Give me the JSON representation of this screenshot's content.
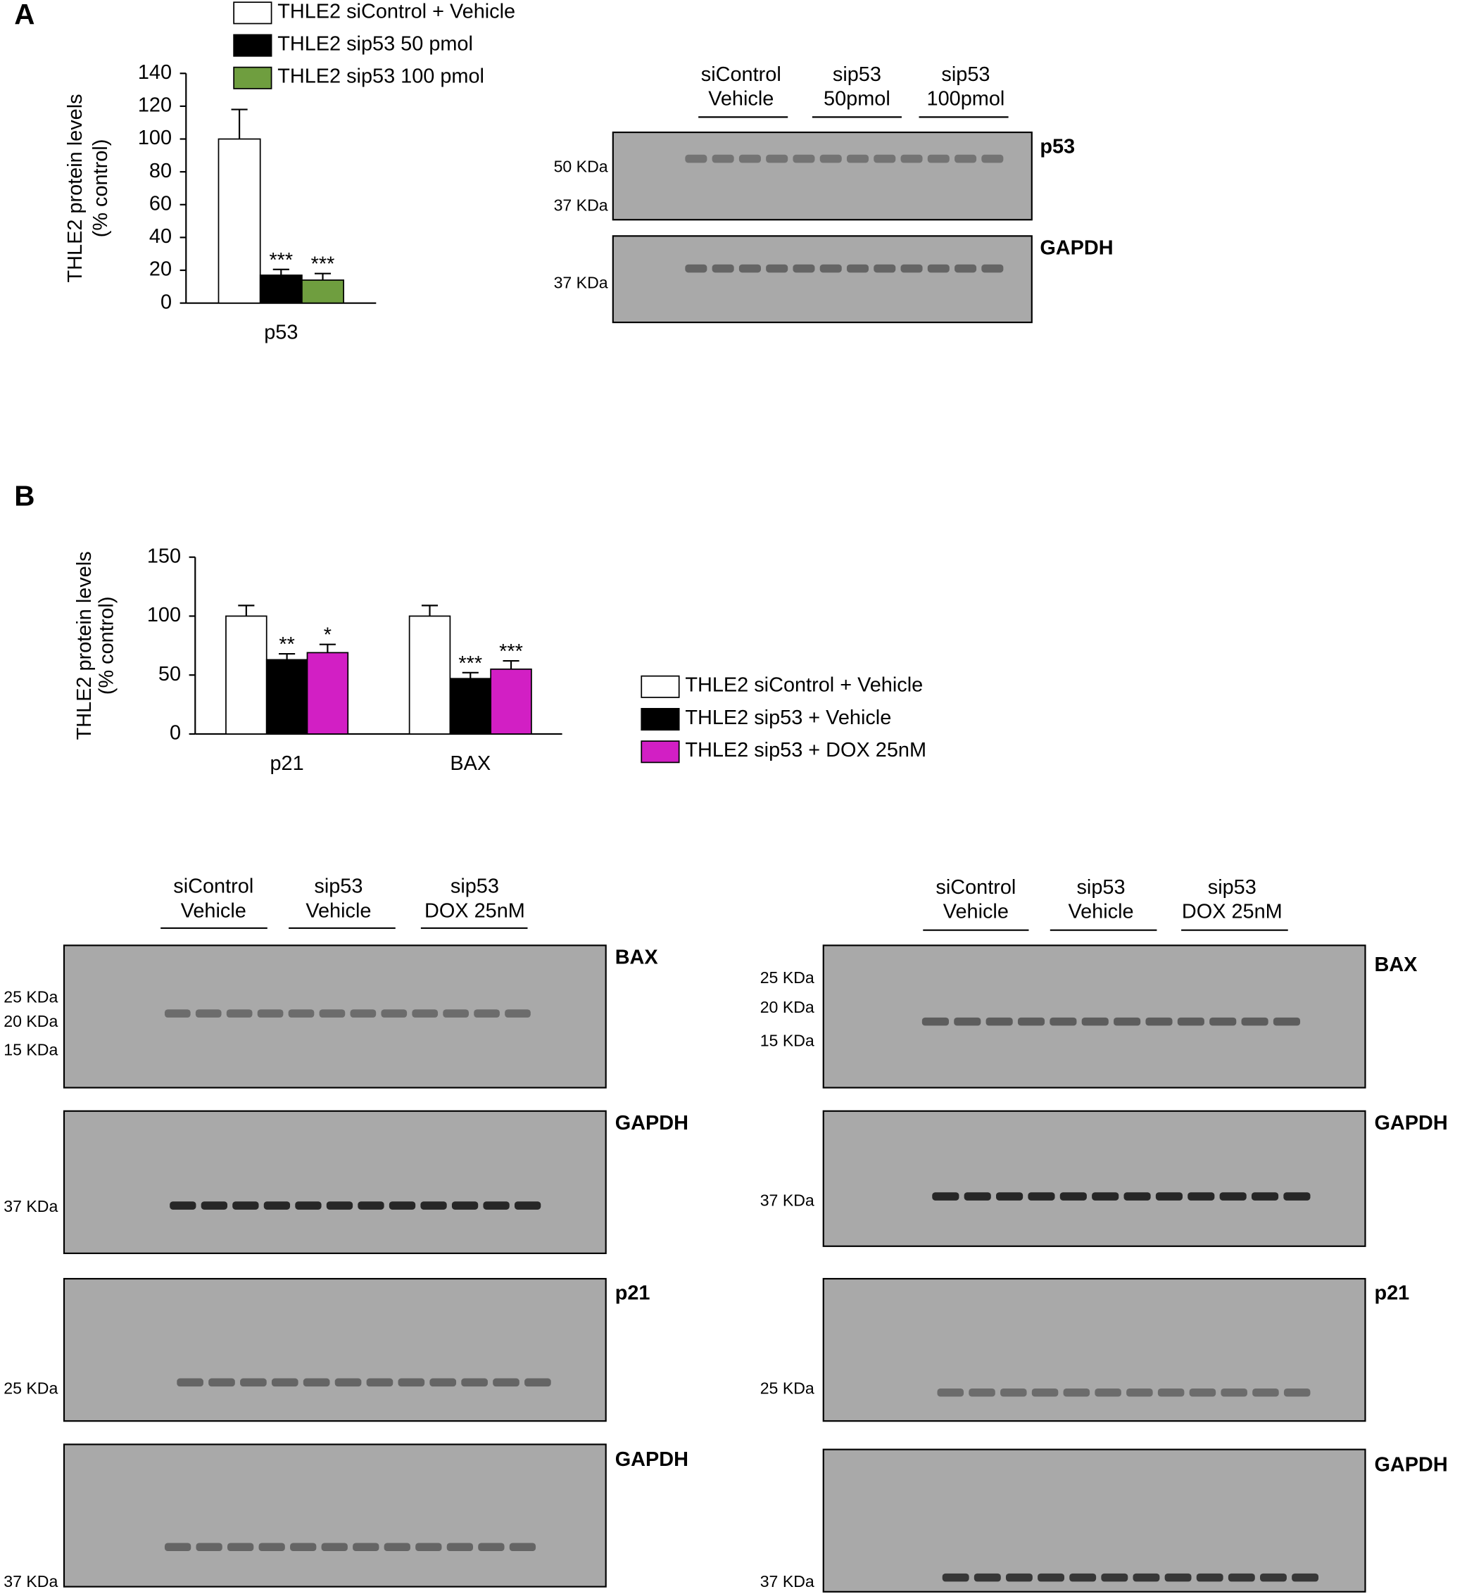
{
  "panel_labels": [
    "A",
    "B"
  ],
  "chart_data": [
    {
      "type": "bar",
      "ylabel": [
        "THLE2 protein levels",
        "(% control)"
      ],
      "categories": [
        "p53"
      ],
      "ylim": [
        0,
        140
      ],
      "yticks": [
        0,
        20,
        40,
        60,
        80,
        100,
        120,
        140
      ],
      "series": [
        {
          "name": "THLE2 siControl + Vehicle",
          "color": "#ffffff",
          "values": [
            100
          ],
          "errors": [
            18
          ],
          "stars": [
            null
          ]
        },
        {
          "name": "THLE2 sip53 50 pmol",
          "color": "#000000",
          "values": [
            17
          ],
          "errors": [
            3.5
          ],
          "stars": [
            "***"
          ]
        },
        {
          "name": "THLE2 sip53 100 pmol",
          "color": "#6f9e3f",
          "values": [
            14
          ],
          "errors": [
            4
          ],
          "stars": [
            "***"
          ]
        }
      ]
    },
    {
      "type": "bar",
      "ylabel": [
        "THLE2 protein levels",
        "(% control)"
      ],
      "categories": [
        "p21",
        "BAX"
      ],
      "ylim": [
        0,
        150
      ],
      "yticks": [
        0,
        50,
        100,
        150
      ],
      "series": [
        {
          "name": "THLE2 siControl + Vehicle",
          "color": "#ffffff",
          "values": [
            100,
            100
          ],
          "errors": [
            9,
            9
          ],
          "stars": [
            null,
            null
          ]
        },
        {
          "name": "THLE2 sip53 + Vehicle",
          "color": "#000000",
          "values": [
            63,
            47
          ],
          "errors": [
            5,
            5
          ],
          "stars": [
            "**",
            "***"
          ]
        },
        {
          "name": "THLE2 sip53 + DOX 25nM",
          "color": "#d21fc4",
          "values": [
            69,
            55
          ],
          "errors": [
            7,
            7
          ],
          "stars": [
            "*",
            "***"
          ]
        }
      ]
    }
  ],
  "blot_panels": [
    {
      "groups": [
        [
          "siControl",
          "Vehicle"
        ],
        [
          "sip53",
          "50pmol"
        ],
        [
          "sip53",
          "100pmol"
        ]
      ],
      "blots": [
        {
          "name": "p53",
          "markers": [
            "50 KDa",
            "37 KDa"
          ]
        },
        {
          "name": "GAPDH",
          "markers": [
            "37 KDa"
          ]
        }
      ]
    },
    {
      "groups": [
        [
          "siControl",
          "Vehicle"
        ],
        [
          "sip53",
          "Vehicle"
        ],
        [
          "sip53",
          "DOX 25nM"
        ]
      ],
      "blots": [
        {
          "name": "BAX",
          "markers": [
            "25 KDa",
            "20 KDa",
            "15 KDa"
          ]
        },
        {
          "name": "GAPDH",
          "markers": [
            "37 KDa"
          ]
        },
        {
          "name": "p21",
          "markers": [
            "25 KDa"
          ]
        },
        {
          "name": "GAPDH",
          "markers": [
            "37 KDa"
          ]
        }
      ]
    },
    {
      "groups": [
        [
          "siControl",
          "Vehicle"
        ],
        [
          "sip53",
          "Vehicle"
        ],
        [
          "sip53",
          "DOX 25nM"
        ]
      ],
      "blots": [
        {
          "name": "BAX",
          "markers": [
            "25 KDa",
            "20 KDa",
            "15 KDa"
          ]
        },
        {
          "name": "GAPDH",
          "markers": [
            "37 KDa"
          ]
        },
        {
          "name": "p21",
          "markers": [
            "25 KDa"
          ]
        },
        {
          "name": "GAPDH",
          "markers": [
            "37 KDa"
          ]
        }
      ]
    }
  ]
}
